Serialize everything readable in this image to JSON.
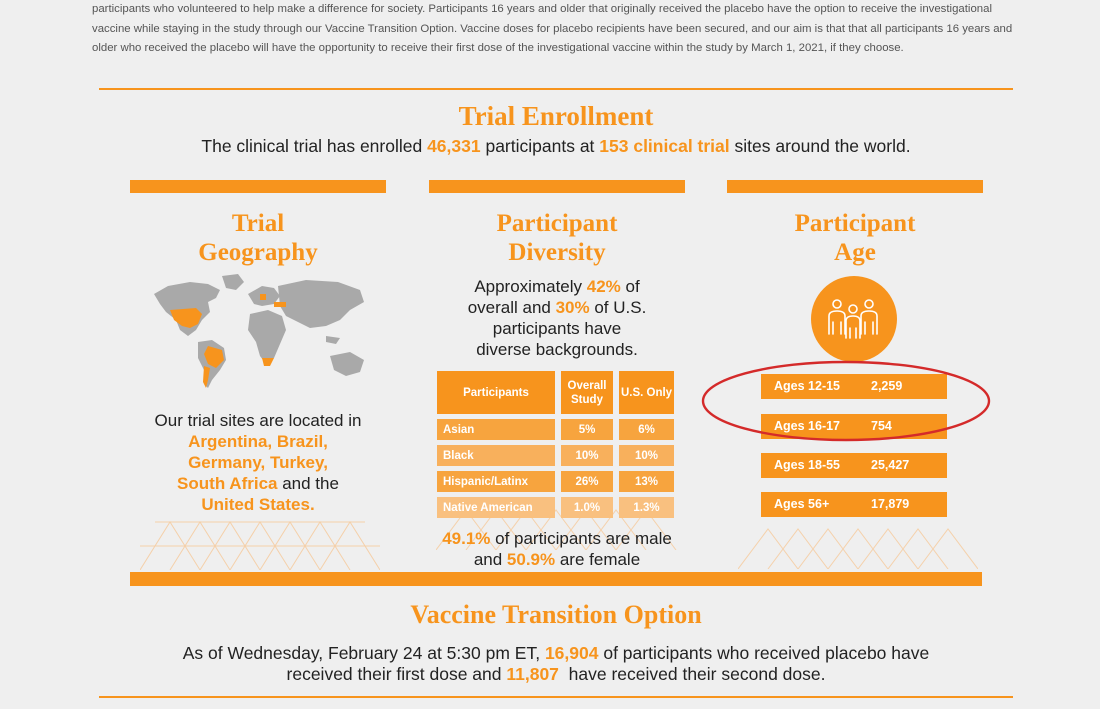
{
  "intro": {
    "text": "participants who volunteered to help make a difference for society. Participants 16 years and older that originally received the placebo have the option to receive the investigational vaccine while staying in the study through our Vaccine Transition Option. Vaccine doses for placebo recipients have been secured, and our aim is that that all participants 16 years and older who received the placebo will have the opportunity to receive their first dose of the investigational vaccine within the study by March 1, 2021, if they choose."
  },
  "enrollment": {
    "title": "Trial Enrollment",
    "pre": "The clinical trial has enrolled ",
    "participants": "46,331",
    "mid": " participants at ",
    "sites": "153 clinical trial",
    "post": " sites around the world."
  },
  "geography": {
    "title_line1": "Trial",
    "title_line2": "Geography",
    "text_pre": "Our trial sites are located in",
    "countries_1": "Argentina, Brazil,",
    "countries_2": "Germany, Turkey,",
    "countries_3": "South Africa",
    "and": " and the",
    "countries_4": "United States."
  },
  "diversity": {
    "title_line1": "Participant",
    "title_line2": "Diversity",
    "l1_pre": "Approximately ",
    "l1_pct": "42%",
    "l1_post": " of",
    "l2_pre": "overall and ",
    "l2_pct": "30%",
    "l2_post": " of U.S.",
    "l3": "participants have",
    "l4": "diverse backgrounds.",
    "table": {
      "headers": [
        "Participants",
        "Overall Study",
        "U.S. Only"
      ],
      "rows": [
        {
          "label": "Asian",
          "overall": "5%",
          "us": "6%"
        },
        {
          "label": "Black",
          "overall": "10%",
          "us": "10%"
        },
        {
          "label": "Hispanic/Latinx",
          "overall": "26%",
          "us": "13%"
        },
        {
          "label": "Native American",
          "overall": "1.0%",
          "us": "1.3%"
        }
      ]
    },
    "gender_male_pct": "49.1%",
    "gender_male_text": " of participants are male",
    "gender_and": "and ",
    "gender_female_pct": "50.9%",
    "gender_female_text": " are female"
  },
  "age": {
    "title_line1": "Participant",
    "title_line2": "Age",
    "icon": "people-group-icon",
    "rows": [
      {
        "label": "Ages 12-15",
        "value": "2,259"
      },
      {
        "label": "Ages 16-17",
        "value": "754"
      },
      {
        "label": "Ages 18-55",
        "value": "25,427"
      },
      {
        "label": "Ages 56+",
        "value": "17,879"
      }
    ]
  },
  "transition": {
    "title": "Vaccine Transition Option",
    "l1_pre": "As of Wednesday, February 24 at 5:30 pm ET, ",
    "first_dose": "16,904",
    "l1_post": " of participants who received placebo have",
    "l2_pre": "received their first dose and ",
    "second_dose": "11,807",
    "l2_post": "  have received their second dose."
  },
  "colors": {
    "accent": "#f7941d",
    "accent_light": "#f9b15d",
    "annotation": "#d42a2a",
    "background": "#efefef"
  }
}
